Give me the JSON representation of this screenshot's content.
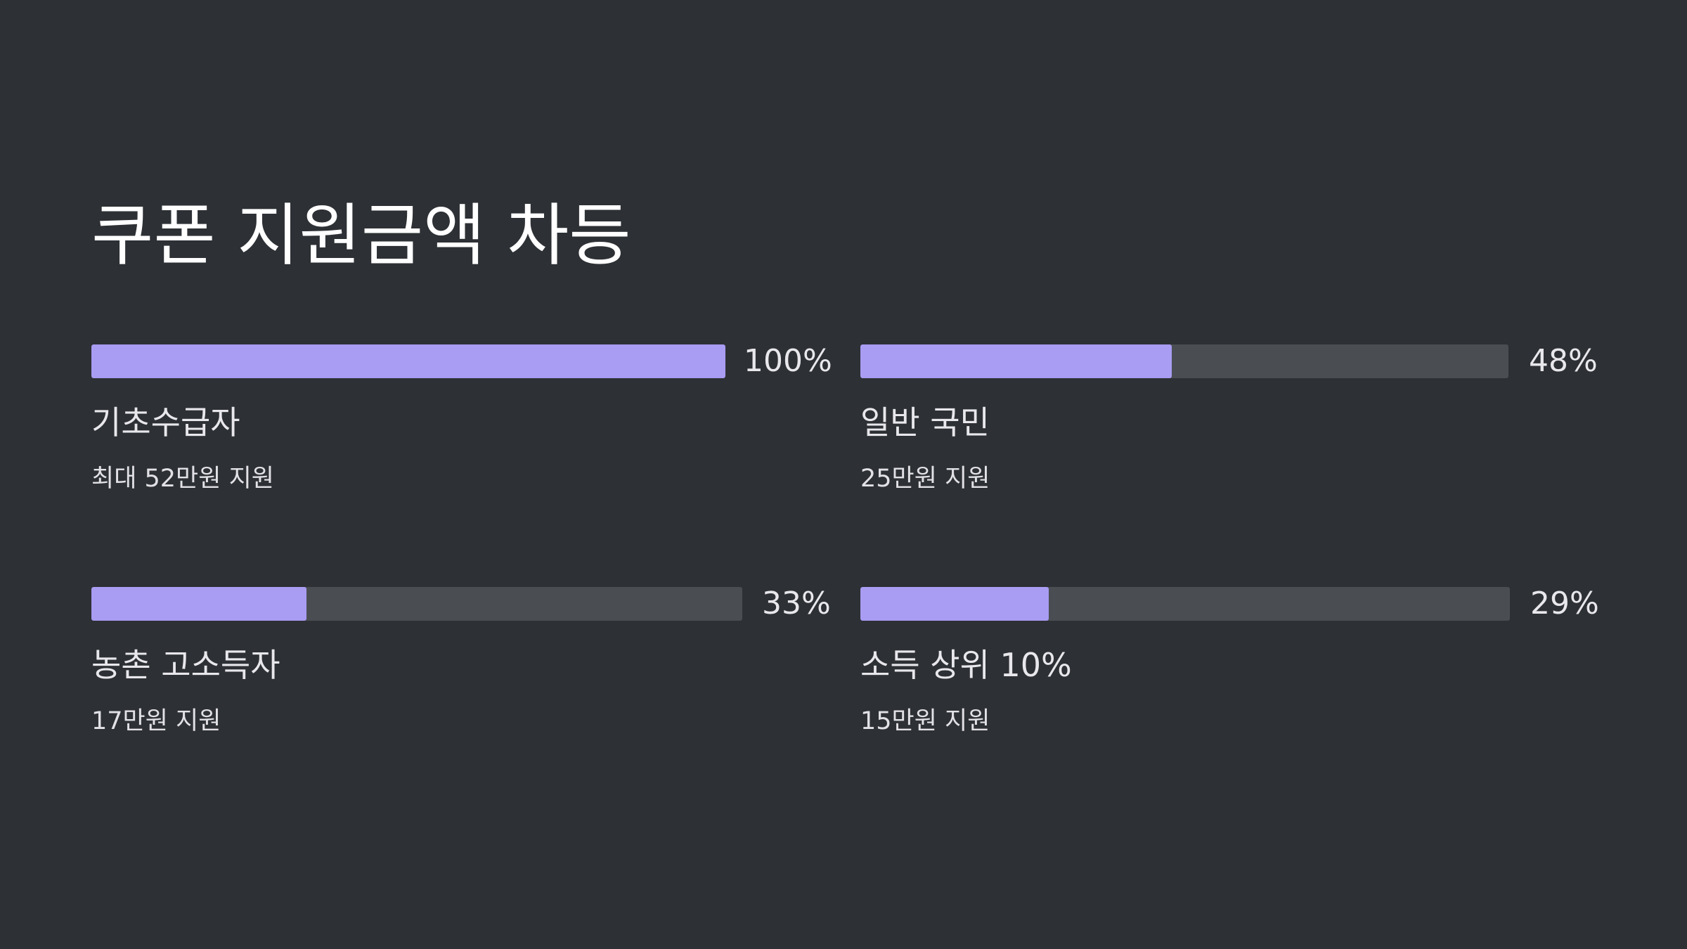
{
  "slide": {
    "title": "쿠폰 지원금액 차등"
  },
  "colors": {
    "background": "#2d3034",
    "bar_fill": "#a99cf3",
    "bar_track": "#4a4e53"
  },
  "items": [
    {
      "label": "기초수급자",
      "description": "최대 52만원 지원",
      "percent_label": "100%",
      "value": 100
    },
    {
      "label": "일반 국민",
      "description": "25만원 지원",
      "percent_label": "48%",
      "value": 48
    },
    {
      "label": "농촌 고소득자",
      "description": "17만원 지원",
      "percent_label": "33%",
      "value": 33
    },
    {
      "label": "소득 상위 10%",
      "description": "15만원 지원",
      "percent_label": "29%",
      "value": 29
    }
  ]
}
